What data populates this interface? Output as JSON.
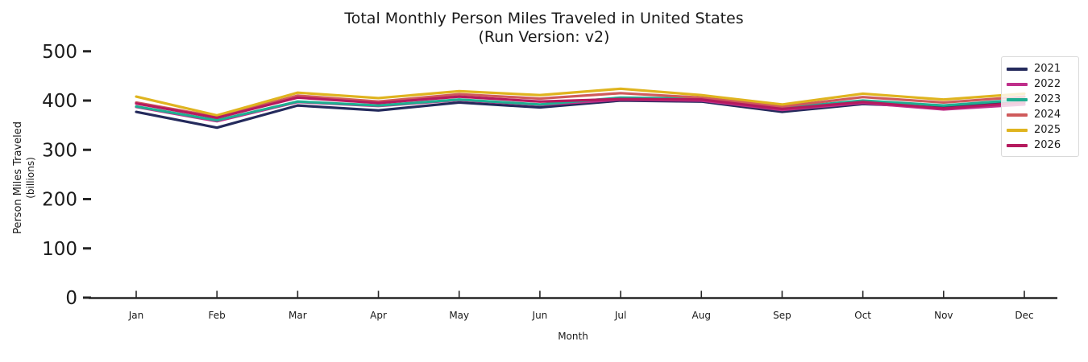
{
  "window": {
    "background": "#ffffff"
  },
  "chart_data": {
    "type": "line",
    "title": "Total Monthly Person Miles Traveled in United States",
    "subtitle": "(Run Version: v2)",
    "xlabel": "Month",
    "ylabel": "Person Miles Traveled",
    "ylabel_sub": "(billions)",
    "x_categories": [
      "Jan",
      "Feb",
      "Mar",
      "Apr",
      "May",
      "Jun",
      "Jul",
      "Aug",
      "Sep",
      "Oct",
      "Nov",
      "Dec"
    ],
    "yticks": [
      0,
      100,
      200,
      300,
      400,
      500
    ],
    "ylim": [
      0,
      510
    ],
    "grid": false,
    "legend_position": "upper right",
    "series": [
      {
        "name": "2021",
        "color": "#242a5c",
        "values": [
          377,
          345,
          390,
          380,
          396,
          386,
          400,
          398,
          377,
          393,
          387,
          399
        ]
      },
      {
        "name": "2022",
        "color": "#bf2f8b",
        "values": [
          387,
          358,
          397,
          389,
          401,
          391,
          402,
          400,
          381,
          395,
          382,
          392
        ]
      },
      {
        "name": "2023",
        "color": "#1fae91",
        "values": [
          388,
          360,
          398,
          390,
          402,
          392,
          406,
          404,
          385,
          400,
          390,
          402
        ]
      },
      {
        "name": "2024",
        "color": "#cf5a5b",
        "values": [
          396,
          367,
          410,
          398,
          413,
          404,
          415,
          406,
          388,
          407,
          396,
          408
        ]
      },
      {
        "name": "2025",
        "color": "#dfb41f",
        "values": [
          408,
          370,
          416,
          405,
          419,
          411,
          424,
          411,
          392,
          414,
          402,
          414
        ]
      },
      {
        "name": "2026",
        "color": "#b51a5e",
        "values": [
          394,
          365,
          406,
          395,
          408,
          398,
          403,
          402,
          383,
          397,
          384,
          396
        ]
      }
    ]
  },
  "style": {
    "axis_color": "#262626",
    "text_color": "#1a1a1a",
    "legend_border": "#d9d9d9"
  }
}
